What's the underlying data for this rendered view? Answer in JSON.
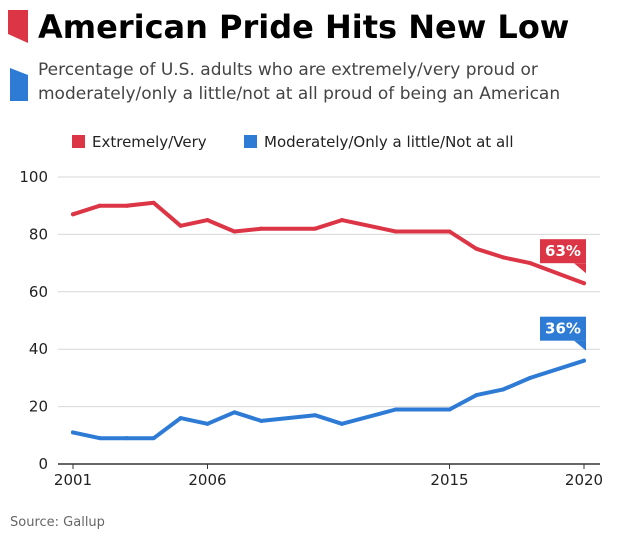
{
  "header": {
    "title": "American Pride Hits New Low",
    "subtitle_lines": [
      "Percentage of U.S. adults who are extremely/very proud or",
      "moderately/only a little/not at all proud of being an American"
    ]
  },
  "source": "Source: Gallup",
  "colors": {
    "accent_red": "#dc3545",
    "accent_blue": "#2e7bd6",
    "grid": "#d7d7d7",
    "axis": "#333333"
  },
  "chart_data": {
    "type": "line",
    "title": "American Pride Hits New Low",
    "xlabel": "",
    "ylabel": "",
    "ylim": [
      0,
      100
    ],
    "xlim": [
      2001,
      2020
    ],
    "y_ticks": [
      0,
      20,
      40,
      60,
      80,
      100
    ],
    "x_ticks": [
      2001,
      2006,
      2015,
      2020
    ],
    "x_tick_labels": [
      "2001",
      "2006",
      "2015",
      "2020"
    ],
    "grid": true,
    "legend_position": "top",
    "x": [
      2001,
      2002,
      2003,
      2004,
      2005,
      2006,
      2007,
      2008,
      2009,
      2010,
      2011,
      2012,
      2013,
      2014,
      2015,
      2016,
      2017,
      2018,
      2019,
      2020
    ],
    "series": [
      {
        "name": "Extremely/Very",
        "color": "#dc3545",
        "values": [
          87,
          90,
          90,
          91,
          83,
          85,
          81,
          82,
          82,
          85,
          81,
          81,
          75,
          72,
          70,
          63
        ],
        "x": [
          2001,
          2002,
          2003,
          2004,
          2005,
          2006,
          2007,
          2008,
          2010,
          2011,
          2013,
          2015,
          2016,
          2017,
          2018,
          2020
        ],
        "end_label": "63%"
      },
      {
        "name": "Moderately/Only a little/Not at all",
        "color": "#2e7bd6",
        "values": [
          11,
          9,
          9,
          9,
          16,
          14,
          18,
          15,
          17,
          14,
          19,
          19,
          24,
          26,
          30,
          36
        ],
        "x": [
          2001,
          2002,
          2003,
          2004,
          2005,
          2006,
          2007,
          2008,
          2010,
          2011,
          2013,
          2015,
          2016,
          2017,
          2018,
          2020
        ],
        "end_label": "36%"
      }
    ]
  }
}
